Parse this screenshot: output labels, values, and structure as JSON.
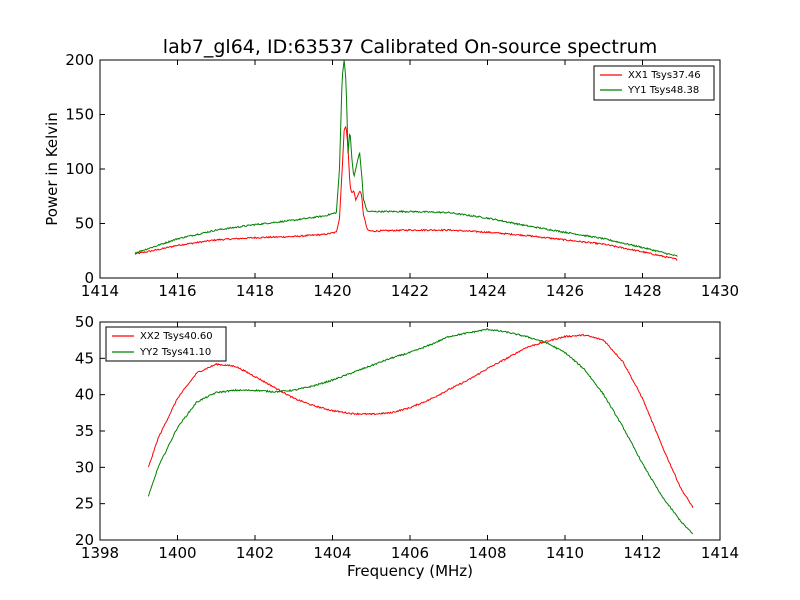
{
  "chart_data": [
    {
      "type": "line",
      "title": "lab7_gl64, ID:63537 Calibrated On-source spectrum",
      "xlabel": "",
      "ylabel": "Power in Kelvin",
      "xlim": [
        1414,
        1430
      ],
      "ylim": [
        0,
        200
      ],
      "xticks": [
        "1414",
        "1416",
        "1418",
        "1420",
        "1422",
        "1424",
        "1426",
        "1428",
        "1430"
      ],
      "yticks": [
        "0",
        "50",
        "100",
        "150",
        "200"
      ],
      "grid": false,
      "legend_position": "top-right",
      "series": [
        {
          "name": "XX1 Tsys37.46",
          "color": "#ff0000",
          "x": [
            1414.9,
            1415.5,
            1416.0,
            1417.0,
            1418.0,
            1419.0,
            1419.8,
            1420.1,
            1420.18,
            1420.25,
            1420.3,
            1420.35,
            1420.4,
            1420.45,
            1420.5,
            1420.55,
            1420.6,
            1420.65,
            1420.7,
            1420.75,
            1420.8,
            1420.9,
            1421.0,
            1422.0,
            1423.0,
            1424.0,
            1425.0,
            1426.0,
            1427.0,
            1428.0,
            1428.9
          ],
          "y": [
            22,
            26,
            30,
            35,
            37,
            38,
            40,
            42,
            55,
            100,
            135,
            140,
            120,
            85,
            78,
            80,
            72,
            75,
            80,
            76,
            58,
            44,
            43,
            44,
            44,
            42,
            39,
            35,
            31,
            24,
            17
          ]
        },
        {
          "name": "YY1 Tsys48.38",
          "color": "#008000",
          "x": [
            1414.9,
            1415.5,
            1416.0,
            1417.0,
            1418.0,
            1419.0,
            1419.8,
            1420.1,
            1420.18,
            1420.25,
            1420.3,
            1420.35,
            1420.4,
            1420.45,
            1420.5,
            1420.55,
            1420.6,
            1420.65,
            1420.7,
            1420.75,
            1420.8,
            1420.9,
            1421.0,
            1422.0,
            1423.0,
            1424.0,
            1425.0,
            1426.0,
            1427.0,
            1428.0,
            1428.9
          ],
          "y": [
            23,
            30,
            36,
            44,
            49,
            53,
            57,
            60,
            100,
            185,
            200,
            180,
            115,
            135,
            110,
            92,
            100,
            108,
            115,
            96,
            72,
            61,
            61,
            61,
            60,
            55,
            48,
            42,
            36,
            28,
            20
          ]
        }
      ]
    },
    {
      "type": "line",
      "title": "",
      "xlabel": "Frequency (MHz)",
      "ylabel": "",
      "xlim": [
        1398,
        1414
      ],
      "ylim": [
        20,
        50
      ],
      "xticks": [
        "1398",
        "1400",
        "1402",
        "1404",
        "1406",
        "1408",
        "1410",
        "1412",
        "1414"
      ],
      "yticks": [
        "20",
        "25",
        "30",
        "35",
        "40",
        "45",
        "50"
      ],
      "grid": false,
      "legend_position": "top-left",
      "series": [
        {
          "name": "XX2 Tsys40.60",
          "color": "#ff0000",
          "x": [
            1399.25,
            1399.5,
            1400.0,
            1400.5,
            1401.0,
            1401.5,
            1402.0,
            1402.5,
            1403.0,
            1403.5,
            1404.0,
            1404.5,
            1405.0,
            1405.5,
            1406.0,
            1406.5,
            1407.0,
            1407.5,
            1408.0,
            1408.5,
            1409.0,
            1409.5,
            1410.0,
            1410.5,
            1411.0,
            1411.5,
            1412.0,
            1412.5,
            1413.0,
            1413.3
          ],
          "y": [
            30,
            34,
            39.5,
            43,
            44.2,
            43.9,
            42.5,
            41,
            39.5,
            38.5,
            37.8,
            37.4,
            37.3,
            37.5,
            38.2,
            39.3,
            40.7,
            42,
            43.6,
            45,
            46.5,
            47.3,
            48,
            48.2,
            47.5,
            44.5,
            39.5,
            33,
            27,
            24.5
          ]
        },
        {
          "name": "YY2 Tsys41.10",
          "color": "#008000",
          "x": [
            1399.25,
            1399.5,
            1400.0,
            1400.5,
            1401.0,
            1401.5,
            1402.0,
            1402.5,
            1403.0,
            1403.5,
            1404.0,
            1404.5,
            1405.0,
            1405.5,
            1406.0,
            1406.5,
            1407.0,
            1407.5,
            1408.0,
            1408.5,
            1409.0,
            1409.5,
            1410.0,
            1410.5,
            1411.0,
            1411.5,
            1412.0,
            1412.5,
            1413.0,
            1413.3
          ],
          "y": [
            26,
            30,
            35.5,
            39,
            40.3,
            40.6,
            40.6,
            40.4,
            40.6,
            41.2,
            42,
            43,
            44,
            45,
            45.8,
            46.8,
            48,
            48.5,
            49,
            48.6,
            48,
            47.2,
            45.8,
            43.5,
            40,
            35.5,
            30.5,
            26,
            22.5,
            20.8
          ]
        }
      ]
    }
  ]
}
